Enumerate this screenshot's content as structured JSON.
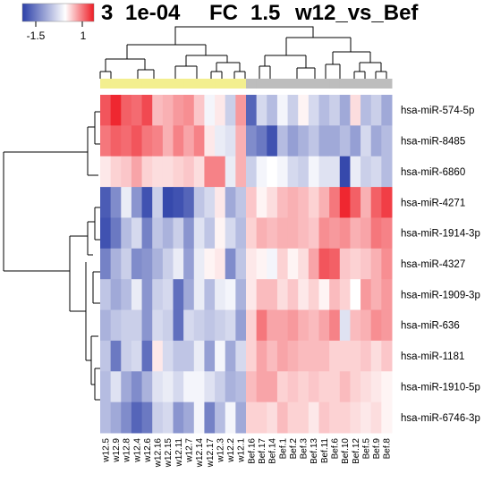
{
  "chart_data": {
    "type": "heatmap",
    "title_parts": [
      "1e-04",
      "FC",
      "1.5",
      "w12_vs_Bef"
    ],
    "title_leading_glyph": "3",
    "color_key": {
      "low_label": "-1.5",
      "high_label": "1",
      "low_color": "#2b3fa8",
      "mid_color": "#ffffff",
      "high_color": "#ee1c25"
    },
    "group_colors": {
      "w12": "#f3ef8f",
      "Bef": "#bdbdbd"
    },
    "columns": [
      "w12.5",
      "w12.9",
      "w12.8",
      "w12.4",
      "w12.6",
      "w12.16",
      "w12.15",
      "w12.11",
      "w12.7",
      "w12.14",
      "w12.17",
      "w12.3",
      "w12.2",
      "w12.1",
      "Bef.16",
      "Bef.17",
      "Bef.14",
      "Bef.1",
      "Bef.2",
      "Bef.3",
      "Bef.13",
      "Bef.11",
      "Bef.6",
      "Bef.10",
      "Bef.12",
      "Bef.5",
      "Bef.9",
      "Bef.8"
    ],
    "rows": [
      "hsa-miR-574-5p",
      "hsa-miR-8485",
      "hsa-miR-6860",
      "hsa-miR-4271",
      "hsa-miR-1914-3p",
      "hsa-miR-4327",
      "hsa-miR-1909-3p",
      "hsa-miR-636",
      "hsa-miR-1181",
      "hsa-miR-1910-5p",
      "hsa-miR-6746-3p"
    ],
    "values": [
      [
        0.75,
        0.95,
        0.7,
        0.65,
        0.8,
        0.3,
        0.35,
        0.45,
        0.5,
        0.25,
        -0.05,
        0.1,
        -0.25,
        0.45,
        -0.8,
        -0.2,
        -0.35,
        -0.05,
        -0.25,
        0.05,
        -0.2,
        -0.35,
        -0.25,
        -0.45,
        0.15,
        -0.35,
        -0.25,
        -0.45
      ],
      [
        0.6,
        0.7,
        0.65,
        0.75,
        0.6,
        0.55,
        0.35,
        0.55,
        0.4,
        0.55,
        0.1,
        -0.1,
        -0.15,
        0.35,
        -0.6,
        -0.7,
        -0.9,
        -0.35,
        -0.5,
        -0.4,
        -0.3,
        -0.45,
        -0.45,
        -0.35,
        -0.5,
        -0.2,
        -0.45,
        -0.35
      ],
      [
        0.1,
        0.2,
        0.25,
        0.4,
        0.2,
        0.15,
        0.15,
        0.2,
        0.25,
        0.15,
        0.55,
        0.55,
        -0.1,
        0.35,
        -0.25,
        -0.05,
        0.0,
        -0.05,
        -0.2,
        -0.25,
        -0.05,
        -0.15,
        -0.15,
        -0.95,
        -0.1,
        -0.25,
        -0.2,
        -0.35
      ],
      [
        -0.85,
        -0.6,
        -0.1,
        -0.55,
        -0.9,
        -0.25,
        -0.95,
        -0.9,
        -0.8,
        -0.3,
        -0.2,
        0.1,
        -0.45,
        -0.3,
        0.25,
        0.05,
        0.15,
        0.3,
        0.35,
        0.3,
        0.2,
        0.35,
        0.6,
        0.95,
        0.7,
        0.35,
        0.7,
        0.85
      ],
      [
        -0.9,
        -0.7,
        -0.35,
        -0.2,
        -0.65,
        -0.3,
        -0.4,
        -0.25,
        -0.55,
        -0.15,
        -0.3,
        0.05,
        -0.2,
        -0.35,
        0.2,
        0.35,
        0.3,
        0.35,
        0.35,
        0.3,
        0.25,
        0.5,
        0.45,
        0.5,
        0.35,
        0.4,
        0.6,
        0.55
      ],
      [
        -0.65,
        -0.4,
        -0.25,
        -0.6,
        -0.55,
        -0.4,
        -0.25,
        -0.1,
        -0.5,
        -0.1,
        0.05,
        0.1,
        -0.6,
        -0.3,
        0.1,
        0.05,
        -0.05,
        0.2,
        0.05,
        0.15,
        0.4,
        0.75,
        0.7,
        0.25,
        0.2,
        0.25,
        0.35,
        0.5
      ],
      [
        -0.3,
        -0.45,
        -0.35,
        -0.1,
        -0.55,
        -0.25,
        -0.2,
        -0.75,
        -0.45,
        -0.1,
        -0.35,
        -0.1,
        -0.05,
        -0.4,
        0.1,
        0.3,
        0.3,
        0.15,
        0.25,
        0.1,
        0.2,
        0.05,
        0.3,
        0.2,
        0.0,
        0.45,
        0.35,
        0.45
      ],
      [
        -0.4,
        -0.3,
        -0.25,
        -0.25,
        -0.55,
        -0.2,
        -0.25,
        -0.75,
        -0.2,
        -0.25,
        -0.3,
        -0.25,
        -0.2,
        -0.5,
        0.2,
        0.6,
        0.4,
        0.4,
        0.45,
        0.35,
        0.3,
        0.4,
        0.55,
        -0.15,
        0.3,
        0.35,
        0.5,
        0.45
      ],
      [
        -0.3,
        -0.7,
        -0.25,
        -0.2,
        -0.75,
        0.1,
        -0.2,
        -0.3,
        -0.3,
        -0.1,
        -0.5,
        -0.05,
        -0.45,
        -0.2,
        0.2,
        0.4,
        0.3,
        0.4,
        0.35,
        0.3,
        0.3,
        0.3,
        0.2,
        0.2,
        0.2,
        0.25,
        0.15,
        0.25
      ],
      [
        -0.35,
        -0.15,
        -0.45,
        -0.6,
        -0.4,
        -0.15,
        -0.1,
        -0.2,
        -0.05,
        -0.05,
        -0.15,
        -0.25,
        -0.4,
        -0.35,
        0.3,
        0.4,
        0.4,
        0.2,
        0.25,
        0.2,
        0.25,
        0.2,
        0.2,
        0.3,
        0.2,
        0.15,
        0.1,
        0.05
      ],
      [
        -0.35,
        -0.45,
        -0.6,
        -0.8,
        -0.7,
        -0.25,
        -0.2,
        -0.55,
        -0.45,
        -0.05,
        -0.65,
        -0.35,
        -0.05,
        -0.45,
        0.2,
        0.2,
        0.15,
        0.3,
        0.2,
        0.2,
        0.1,
        0.25,
        0.2,
        0.2,
        0.15,
        0.1,
        0.15,
        0.05
      ]
    ],
    "vmin": -1.5,
    "vmax": 1,
    "legend_position": "top-left"
  }
}
